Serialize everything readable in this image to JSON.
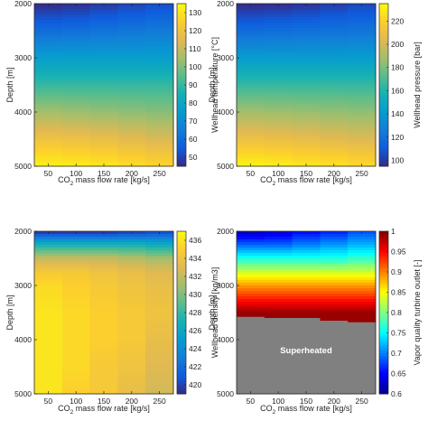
{
  "chart_data": [
    {
      "type": "heatmap",
      "xlabel": "CO2 mass flow rate [kg/s]",
      "ylabel": "Depth [m]",
      "x_ticks": [
        50,
        100,
        150,
        200,
        250
      ],
      "y_ticks": [
        2000,
        3000,
        4000,
        5000
      ],
      "xlim": [
        25,
        275
      ],
      "ylim": [
        2000,
        5000
      ],
      "colormap": "parula",
      "colorbar_label": "Wellhead temperature [°C]",
      "colorbar_range": [
        45,
        135
      ],
      "colorbar_ticks": [
        50,
        60,
        70,
        80,
        90,
        100,
        110,
        120,
        130
      ],
      "x": [
        50,
        100,
        150,
        200,
        250
      ],
      "depths": [
        2000,
        2500,
        3000,
        3500,
        4000,
        4500,
        5000
      ],
      "values": [
        [
          45,
          46,
          48,
          50,
          52
        ],
        [
          60,
          61,
          62,
          63,
          64
        ],
        [
          76,
          76,
          76,
          76,
          76
        ],
        [
          90,
          90,
          90,
          90,
          90
        ],
        [
          105,
          104,
          103,
          102,
          101
        ],
        [
          120,
          119,
          118,
          116,
          114
        ],
        [
          133,
          132,
          131,
          129,
          127
        ]
      ]
    },
    {
      "type": "heatmap",
      "xlabel": "CO2 mass flow rate [kg/s]",
      "ylabel": "Depth [m]",
      "x_ticks": [
        50,
        100,
        150,
        200,
        250
      ],
      "y_ticks": [
        2000,
        3000,
        4000,
        5000
      ],
      "xlim": [
        25,
        275
      ],
      "ylim": [
        2000,
        5000
      ],
      "colormap": "parula",
      "colorbar_label": "Wellhead pressure [bar]",
      "colorbar_range": [
        95,
        235
      ],
      "colorbar_ticks": [
        100,
        120,
        140,
        160,
        180,
        200,
        220
      ],
      "x": [
        50,
        100,
        150,
        200,
        250
      ],
      "depths": [
        2000,
        2500,
        3000,
        3500,
        4000,
        4500,
        5000
      ],
      "values": [
        [
          95,
          96,
          98,
          101,
          104
        ],
        [
          118,
          119,
          120,
          121,
          122
        ],
        [
          142,
          142,
          142,
          142,
          142
        ],
        [
          165,
          165,
          165,
          165,
          165
        ],
        [
          188,
          187,
          186,
          185,
          184
        ],
        [
          210,
          209,
          207,
          205,
          203
        ],
        [
          233,
          231,
          229,
          227,
          224
        ]
      ]
    },
    {
      "type": "heatmap",
      "xlabel": "CO2 mass flow rate [kg/s]",
      "ylabel": "Depth [m]",
      "x_ticks": [
        50,
        100,
        150,
        200,
        250
      ],
      "y_ticks": [
        2000,
        3000,
        4000,
        5000
      ],
      "xlim": [
        25,
        275
      ],
      "ylim": [
        2000,
        5000
      ],
      "colormap": "parula",
      "colorbar_label": "Wellhead density [kg/m3]",
      "colorbar_range": [
        419,
        437
      ],
      "colorbar_ticks": [
        420,
        422,
        424,
        426,
        428,
        430,
        432,
        434,
        436
      ],
      "x": [
        50,
        100,
        150,
        200,
        250
      ],
      "depths": [
        2000,
        2250,
        2500,
        2750,
        3000,
        3500,
        4000,
        4500,
        5000
      ],
      "values": [
        [
          419,
          419,
          419,
          419.5,
          420
        ],
        [
          427,
          427,
          427,
          427,
          426.5
        ],
        [
          432,
          432,
          432,
          431.5,
          431
        ],
        [
          434.5,
          434.5,
          434,
          433.5,
          433
        ],
        [
          435.5,
          435,
          434.5,
          434,
          433.5
        ],
        [
          436,
          435.5,
          435,
          434.5,
          434
        ],
        [
          436,
          435.5,
          435,
          434.5,
          433.5
        ],
        [
          436,
          435.5,
          434.5,
          434,
          433
        ],
        [
          436,
          435,
          434.5,
          433.5,
          432.5
        ]
      ]
    },
    {
      "type": "heatmap",
      "xlabel": "CO2 mass flow rate [kg/s]",
      "ylabel": "Depth [m]",
      "x_ticks": [
        50,
        100,
        150,
        200,
        250
      ],
      "y_ticks": [
        2000,
        3000,
        4000,
        5000
      ],
      "xlim": [
        25,
        275
      ],
      "ylim": [
        2000,
        5000
      ],
      "colormap": "jet",
      "colorbar_label": "Vapor quality turbine outlet [-]",
      "colorbar_range": [
        0.6,
        1
      ],
      "colorbar_ticks": [
        0.6,
        0.65,
        0.7,
        0.75,
        0.8,
        0.85,
        0.9,
        0.95,
        1
      ],
      "x": [
        50,
        100,
        150,
        200,
        250
      ],
      "depths": [
        2000,
        2250,
        2500,
        2750,
        3000,
        3250,
        3500
      ],
      "values": [
        [
          0.62,
          0.63,
          0.65,
          0.66,
          0.68
        ],
        [
          0.69,
          0.69,
          0.7,
          0.71,
          0.72
        ],
        [
          0.76,
          0.76,
          0.76,
          0.76,
          0.77
        ],
        [
          0.83,
          0.83,
          0.83,
          0.83,
          0.83
        ],
        [
          0.89,
          0.89,
          0.89,
          0.89,
          0.89
        ],
        [
          0.94,
          0.94,
          0.94,
          0.94,
          0.94
        ],
        [
          0.99,
          0.99,
          0.99,
          0.99,
          0.99
        ]
      ],
      "superheated_boundary_depth": [
        3580,
        3600,
        3620,
        3650,
        3680
      ],
      "region_color": "#808080",
      "annotation": "Superheated"
    }
  ]
}
